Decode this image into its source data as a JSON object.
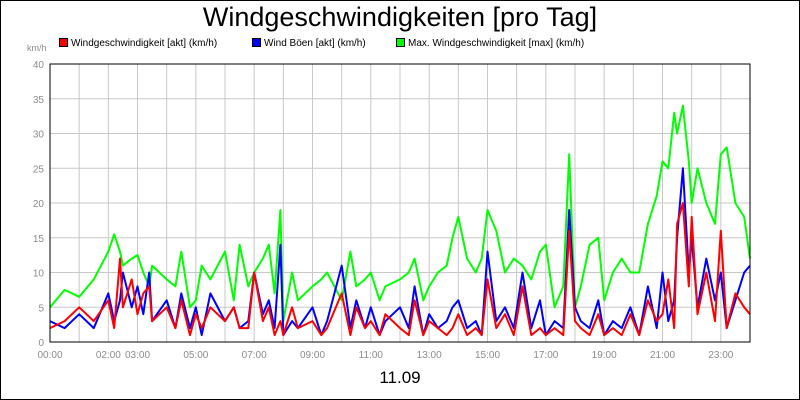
{
  "chart_data": {
    "type": "line",
    "title": "Windgeschwindigkeiten [pro Tag]",
    "ylabel": "km/h",
    "xlabel": "11.09",
    "ylim": [
      0,
      40
    ],
    "xlim": [
      0,
      24
    ],
    "y_ticks": [
      "0",
      "5",
      "10",
      "15",
      "20",
      "25",
      "30",
      "35",
      "40"
    ],
    "x_ticks": [
      {
        "t": 0,
        "label": "00:00"
      },
      {
        "t": 2,
        "label": "02:00"
      },
      {
        "t": 3,
        "label": "03:00"
      },
      {
        "t": 5,
        "label": "05:00"
      },
      {
        "t": 7,
        "label": "07:00"
      },
      {
        "t": 9,
        "label": "09:00"
      },
      {
        "t": 11,
        "label": "11:00"
      },
      {
        "t": 13,
        "label": "13:00"
      },
      {
        "t": 15,
        "label": "15:00"
      },
      {
        "t": 17,
        "label": "17:00"
      },
      {
        "t": 19,
        "label": "19:00"
      },
      {
        "t": 21,
        "label": "21:00"
      },
      {
        "t": 23,
        "label": "23:00"
      }
    ],
    "grid": true,
    "legend_position": "top",
    "series": [
      {
        "name": "Max. Windgeschwindigkeit [max] (km/h)",
        "color": "#00ff00",
        "x": [
          0,
          0.5,
          1,
          1.5,
          2,
          2.2,
          2.4,
          2.5,
          2.8,
          3,
          3.2,
          3.4,
          3.5,
          4,
          4.3,
          4.5,
          4.8,
          5,
          5.2,
          5.5,
          6,
          6.3,
          6.5,
          6.8,
          7,
          7.3,
          7.5,
          7.7,
          7.9,
          8,
          8.3,
          8.5,
          9,
          9.3,
          9.5,
          10,
          10.3,
          10.5,
          10.8,
          11,
          11.3,
          11.5,
          12,
          12.3,
          12.5,
          12.8,
          13,
          13.3,
          13.6,
          13.8,
          14,
          14.3,
          14.6,
          14.8,
          15,
          15.3,
          15.6,
          15.9,
          16.2,
          16.5,
          16.8,
          17,
          17.3,
          17.6,
          17.8,
          18,
          18.2,
          18.5,
          18.8,
          19,
          19.3,
          19.6,
          19.9,
          20.2,
          20.5,
          20.8,
          21,
          21.2,
          21.4,
          21.5,
          21.7,
          21.9,
          22,
          22.2,
          22.5,
          22.8,
          23,
          23.2,
          23.5,
          23.8,
          24
        ],
        "values": [
          5,
          7.5,
          6.5,
          9,
          13,
          15.5,
          13,
          11,
          12,
          12.5,
          10,
          8,
          11,
          9,
          8,
          13,
          5,
          6,
          11,
          9,
          13,
          6,
          14,
          8,
          10,
          12,
          14,
          7,
          19,
          3,
          10,
          6,
          8,
          9,
          10,
          6,
          13,
          8,
          9,
          10,
          6,
          8,
          9,
          10,
          12,
          6,
          8,
          10,
          11,
          15,
          18,
          12,
          10,
          12,
          19,
          16,
          10,
          12,
          11,
          9,
          13,
          14,
          5,
          8,
          27,
          5,
          8,
          14,
          15,
          6,
          10,
          12,
          10,
          10,
          17,
          21,
          26,
          25,
          33,
          30,
          34,
          26,
          20,
          25,
          20,
          17,
          27,
          28,
          20,
          18,
          12
        ]
      },
      {
        "name": "Wind Böen [akt] (km/h)",
        "color": "#0000ff",
        "x": [
          0,
          0.5,
          1,
          1.5,
          2,
          2.2,
          2.4,
          2.5,
          2.8,
          3,
          3.2,
          3.4,
          3.5,
          4,
          4.3,
          4.5,
          4.8,
          5,
          5.2,
          5.5,
          6,
          6.3,
          6.5,
          6.8,
          7,
          7.3,
          7.5,
          7.7,
          7.9,
          8,
          8.3,
          8.5,
          9,
          9.3,
          9.5,
          10,
          10.3,
          10.5,
          10.8,
          11,
          11.3,
          11.5,
          12,
          12.3,
          12.5,
          12.8,
          13,
          13.3,
          13.6,
          13.8,
          14,
          14.3,
          14.6,
          14.8,
          15,
          15.3,
          15.6,
          15.9,
          16.2,
          16.5,
          16.8,
          17,
          17.3,
          17.6,
          17.8,
          18,
          18.2,
          18.5,
          18.8,
          19,
          19.3,
          19.6,
          19.9,
          20.2,
          20.5,
          20.8,
          21,
          21.2,
          21.4,
          21.5,
          21.7,
          21.9,
          22,
          22.2,
          22.5,
          22.8,
          23,
          23.2,
          23.5,
          23.8,
          24
        ],
        "values": [
          3,
          2,
          4,
          2,
          7,
          3,
          6,
          10,
          5,
          8,
          4,
          10,
          3,
          6,
          2,
          7,
          2,
          5,
          1,
          7,
          3,
          5,
          2,
          3,
          10,
          4,
          6,
          2,
          14,
          1,
          3,
          2,
          5,
          1,
          3,
          11,
          2,
          6,
          2,
          5,
          1,
          3,
          5,
          2,
          8,
          1,
          4,
          2,
          3,
          5,
          6,
          2,
          3,
          1,
          13,
          3,
          5,
          2,
          10,
          2,
          6,
          1,
          3,
          2,
          19,
          5,
          3,
          2,
          6,
          1,
          3,
          2,
          5,
          1,
          8,
          2,
          10,
          3,
          6,
          15,
          25,
          10,
          15,
          5,
          12,
          6,
          10,
          2,
          6,
          10,
          11
        ]
      },
      {
        "name": "Windgeschwindigkeit [akt] (km/h)",
        "color": "#ff0000",
        "x": [
          0,
          0.5,
          1,
          1.5,
          2,
          2.2,
          2.4,
          2.5,
          2.8,
          3,
          3.2,
          3.4,
          3.5,
          4,
          4.3,
          4.5,
          4.8,
          5,
          5.2,
          5.5,
          6,
          6.3,
          6.5,
          6.8,
          7,
          7.3,
          7.5,
          7.7,
          7.9,
          8,
          8.3,
          8.5,
          9,
          9.3,
          9.5,
          10,
          10.3,
          10.5,
          10.8,
          11,
          11.3,
          11.5,
          12,
          12.3,
          12.5,
          12.8,
          13,
          13.3,
          13.6,
          13.8,
          14,
          14.3,
          14.6,
          14.8,
          15,
          15.3,
          15.6,
          15.9,
          16.2,
          16.5,
          16.8,
          17,
          17.3,
          17.6,
          17.8,
          18,
          18.2,
          18.5,
          18.8,
          19,
          19.3,
          19.6,
          19.9,
          20.2,
          20.5,
          20.8,
          21,
          21.2,
          21.4,
          21.5,
          21.7,
          21.9,
          22,
          22.2,
          22.5,
          22.8,
          23,
          23.2,
          23.5,
          23.8,
          24
        ],
        "values": [
          2,
          3,
          5,
          3,
          6,
          2,
          12,
          5,
          9,
          4,
          7,
          8,
          3,
          5,
          2,
          6,
          1,
          4,
          2,
          5,
          3,
          5,
          2,
          2,
          10,
          3,
          5,
          1,
          3,
          1,
          5,
          2,
          3,
          1,
          2,
          7,
          1,
          5,
          2,
          3,
          1,
          4,
          2,
          1,
          6,
          1,
          3,
          2,
          1,
          2,
          4,
          1,
          2,
          1,
          9,
          2,
          4,
          1,
          8,
          1,
          2,
          1,
          2,
          1,
          16,
          3,
          2,
          1,
          4,
          1,
          2,
          1,
          4,
          1,
          6,
          3,
          4,
          9,
          2,
          17,
          20,
          8,
          18,
          4,
          10,
          3,
          16,
          2,
          7,
          5,
          4
        ]
      }
    ]
  }
}
